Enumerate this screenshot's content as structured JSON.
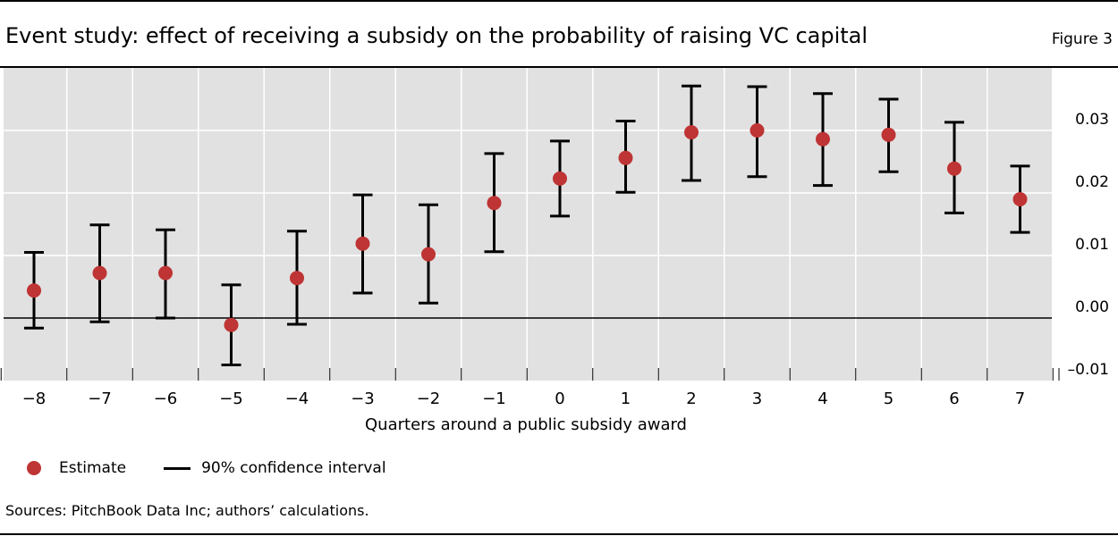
{
  "header": {
    "title": "Event study: effect of receiving a subsidy on the probability of raising VC capital",
    "figure_label": "Figure 3"
  },
  "legend": {
    "estimate_label": "Estimate",
    "ci_label": "90% confidence interval"
  },
  "footer": {
    "sources": "Sources: PitchBook Data Inc; authors’ calculations."
  },
  "colors": {
    "plot_background": "#e1e1e1",
    "grid": "#ffffff",
    "estimate": "#bf3434",
    "interval": "#000000"
  },
  "chart_data": {
    "type": "scatter",
    "title": "Event study: effect of receiving a subsidy on the probability of raising VC capital",
    "xlabel": "Quarters around a public subsidy award",
    "ylabel": "",
    "x": [
      -8,
      -7,
      -6,
      -5,
      -4,
      -3,
      -2,
      -1,
      0,
      1,
      2,
      3,
      4,
      5,
      6,
      7
    ],
    "x_tick_labels": [
      "−8",
      "−7",
      "−6",
      "−5",
      "−4",
      "−3",
      "−2",
      "−1",
      "0",
      "1",
      "2",
      "3",
      "4",
      "5",
      "6",
      "7"
    ],
    "series": [
      {
        "name": "Estimate",
        "values": [
          0.0044,
          0.0072,
          0.0072,
          -0.0011,
          0.0064,
          0.0119,
          0.0102,
          0.0184,
          0.0223,
          0.0256,
          0.0297,
          0.03,
          0.0286,
          0.0293,
          0.0239,
          0.019
        ]
      },
      {
        "name": "90% confidence interval",
        "lower": [
          -0.0016,
          -0.0006,
          0.0,
          -0.0075,
          -0.001,
          0.004,
          0.0024,
          0.0106,
          0.0163,
          0.0201,
          0.022,
          0.0226,
          0.0212,
          0.0234,
          0.0168,
          0.0137
        ],
        "upper": [
          0.0105,
          0.0149,
          0.0141,
          0.0053,
          0.0139,
          0.0197,
          0.0181,
          0.0263,
          0.0283,
          0.0315,
          0.0371,
          0.037,
          0.0359,
          0.035,
          0.0313,
          0.0243
        ]
      }
    ],
    "y_ticks": [
      -0.01,
      0.0,
      0.01,
      0.02,
      0.03
    ],
    "y_tick_labels": [
      "–0.01",
      "0.00",
      "0.01",
      "0.02",
      "0.03"
    ],
    "ylim": [
      -0.01,
      0.04
    ],
    "y_axis_position": "right",
    "grid": true,
    "legend_position": "bottom-left"
  }
}
